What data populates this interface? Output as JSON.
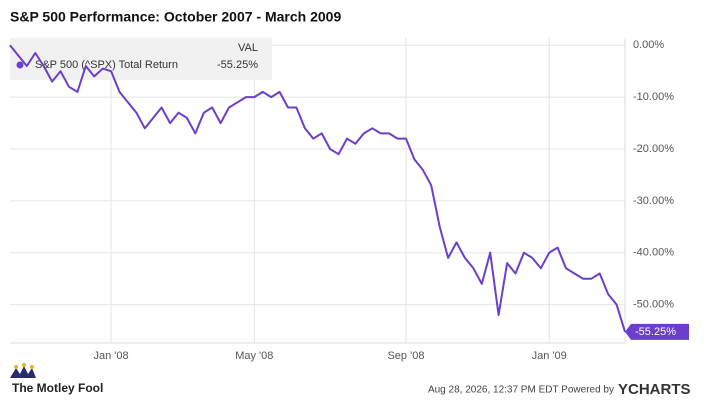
{
  "chart_data": {
    "type": "line",
    "title": "S&P 500 Performance: October 2007 - March 2009",
    "legend_header": "VAL",
    "categories": [
      null,
      null,
      null,
      null,
      null,
      null,
      null,
      null,
      null,
      null,
      null,
      null,
      "Jan '08",
      null,
      null,
      null,
      null,
      null,
      null,
      null,
      null,
      null,
      null,
      null,
      null,
      null,
      null,
      null,
      null,
      "May '08",
      null,
      null,
      null,
      null,
      null,
      null,
      null,
      null,
      null,
      null,
      null,
      null,
      null,
      null,
      null,
      null,
      null,
      "Sep '08",
      null,
      null,
      null,
      null,
      null,
      null,
      null,
      null,
      null,
      null,
      null,
      null,
      null,
      null,
      null,
      null,
      "Jan '09",
      null,
      null,
      null,
      null,
      null,
      null,
      null,
      null,
      null
    ],
    "series": [
      {
        "name": "S&P 500 (^SPX) Total Return",
        "color": "#6a3fcb",
        "values": [
          0,
          -2,
          -4,
          -1.5,
          -4,
          -7,
          -5,
          -8,
          -9,
          -4,
          -6,
          -4.5,
          -5,
          -9,
          -11,
          -13,
          -16,
          -14,
          -12,
          -15,
          -13,
          -14,
          -17,
          -13,
          -12,
          -15,
          -12,
          -11,
          -10,
          -10,
          -9,
          -10,
          -9,
          -12,
          -12,
          -16,
          -18,
          -17,
          -20,
          -21,
          -18,
          -19,
          -17,
          -16,
          -17,
          -17,
          -18,
          -18,
          -22,
          -24,
          -27,
          -35,
          -41,
          -38,
          -41,
          -43,
          -46,
          -40,
          -52,
          -42,
          -44,
          -40,
          -41,
          -43,
          -40,
          -39,
          -43,
          -44,
          -45,
          -45,
          -44,
          -48,
          -50,
          -55.25
        ],
        "last_value_label": "-55.25%"
      }
    ],
    "ylim": [
      -57.4,
      1.4
    ],
    "yticks": [
      {
        "value": 0,
        "label": "0.00%"
      },
      {
        "value": -10,
        "label": "-10.00%"
      },
      {
        "value": -20,
        "label": "-20.00%"
      },
      {
        "value": -30,
        "label": "-30.00%"
      },
      {
        "value": -40,
        "label": "-40.00%"
      },
      {
        "value": -50,
        "label": "-50.00%"
      }
    ],
    "grid": true
  },
  "footer": {
    "brand": "The Motley Fool",
    "timestamp": "Aug 28, 2026, 12:37 PM EDT Powered by",
    "provider": "YCHARTS"
  }
}
